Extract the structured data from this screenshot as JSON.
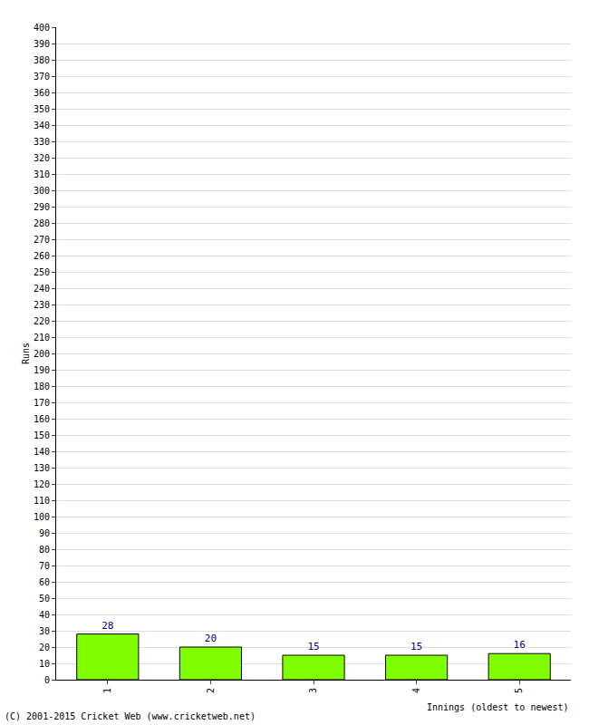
{
  "chart_data": {
    "type": "bar",
    "categories": [
      "1",
      "2",
      "3",
      "4",
      "5"
    ],
    "values": [
      28,
      20,
      15,
      15,
      16
    ],
    "color": "#80ff00",
    "x_label": "Innings (oldest to newest)",
    "y_label": "Runs",
    "annotations": [
      "(C) 2001-2015 Cricket Web (www.cricketweb.net)"
    ],
    "ylim": [
      0,
      400
    ],
    "yticks": [
      0,
      10,
      20,
      30,
      40,
      50,
      60,
      70,
      80,
      90,
      100,
      110,
      120,
      130,
      140,
      150,
      160,
      170,
      180,
      190,
      200,
      210,
      220,
      230,
      240,
      250,
      260,
      270,
      280,
      290,
      300,
      310,
      320,
      330,
      340,
      350,
      360,
      370,
      380,
      390,
      400
    ],
    "grid": true,
    "data_labels": true
  }
}
